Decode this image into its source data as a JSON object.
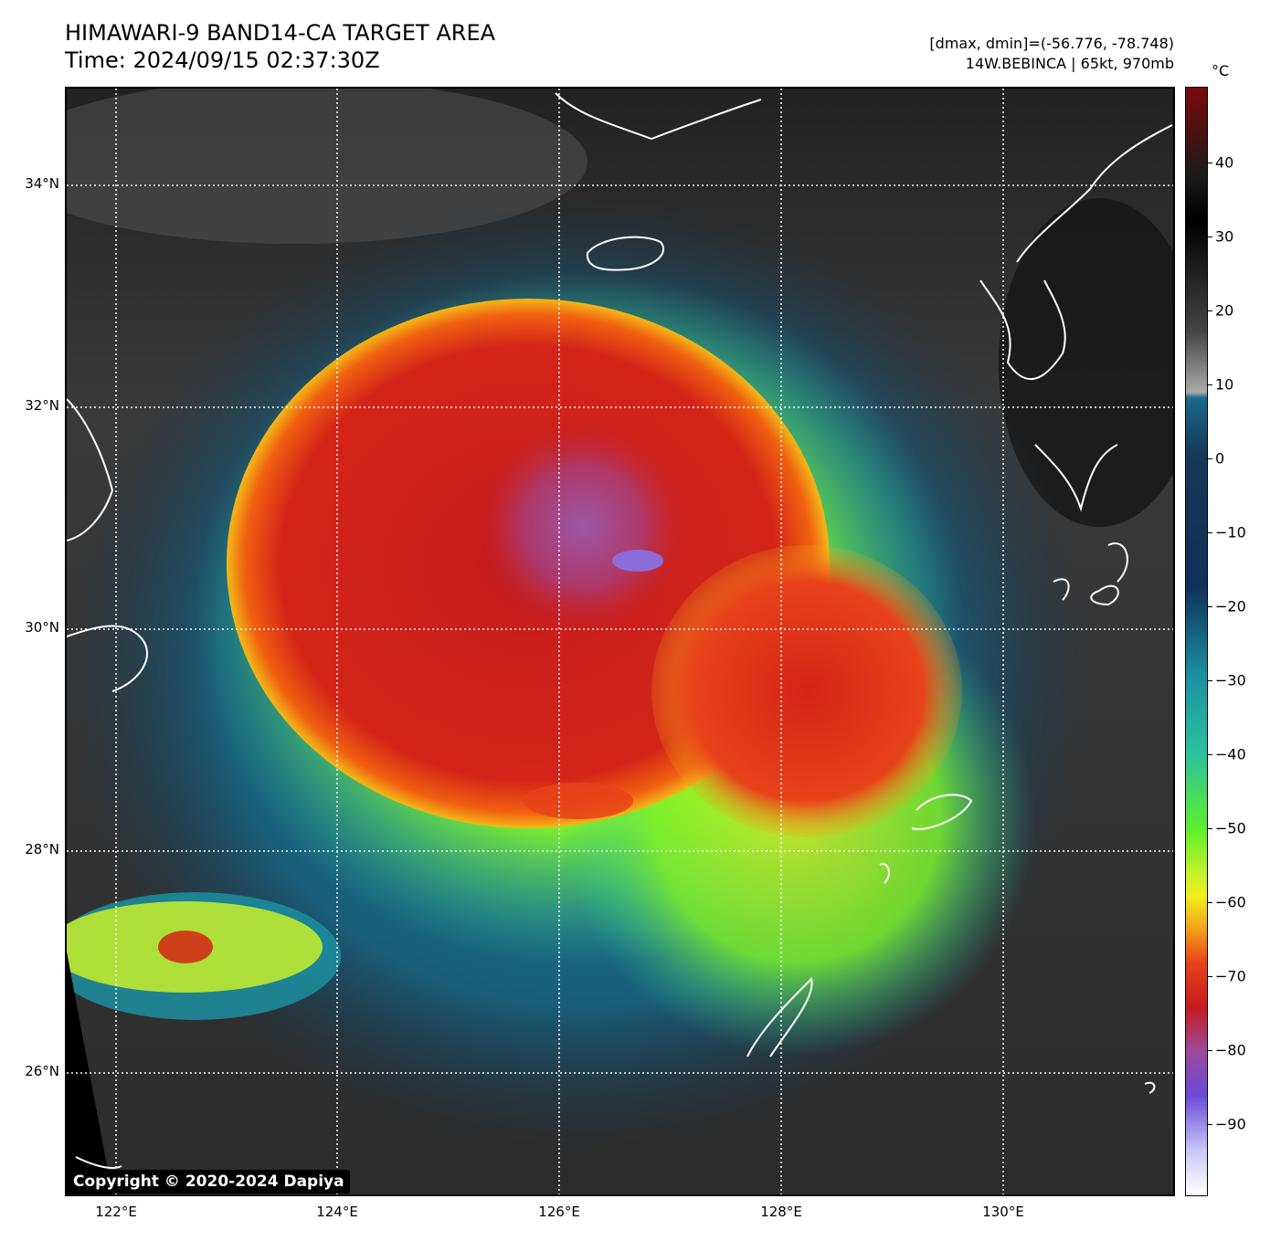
{
  "header": {
    "title_line1": "HIMAWARI-9 BAND14-CA TARGET AREA",
    "title_line2": "Time: 2024/09/15 02:37:30Z",
    "range_info": "[dmax, dmin]=(-56.776, -78.748)",
    "storm_info": "14W.BEBINCA | 65kt, 970mb"
  },
  "map": {
    "lat_labels": [
      "34°N",
      "32°N",
      "30°N",
      "28°N",
      "26°N"
    ],
    "lon_labels": [
      "122°E",
      "124°E",
      "126°E",
      "128°E",
      "130°E"
    ],
    "copyright": "Copyright © 2020-2024 Dapiya"
  },
  "colorbar": {
    "unit": "°C",
    "tick_labels": [
      "40",
      "30",
      "20",
      "10",
      "0",
      "−10",
      "−20",
      "−30",
      "−40",
      "−50",
      "−60",
      "−70",
      "−80",
      "−90"
    ]
  },
  "colors": {
    "coldest": "#8c6cd8",
    "very_cold": "#d42418",
    "cold": "#f07a10",
    "yellow": "#f2ee1e",
    "green": "#5ef02a",
    "cyan": "#1c8fa0",
    "navy": "#143a58",
    "warm_gray": "#4a4a4a"
  }
}
